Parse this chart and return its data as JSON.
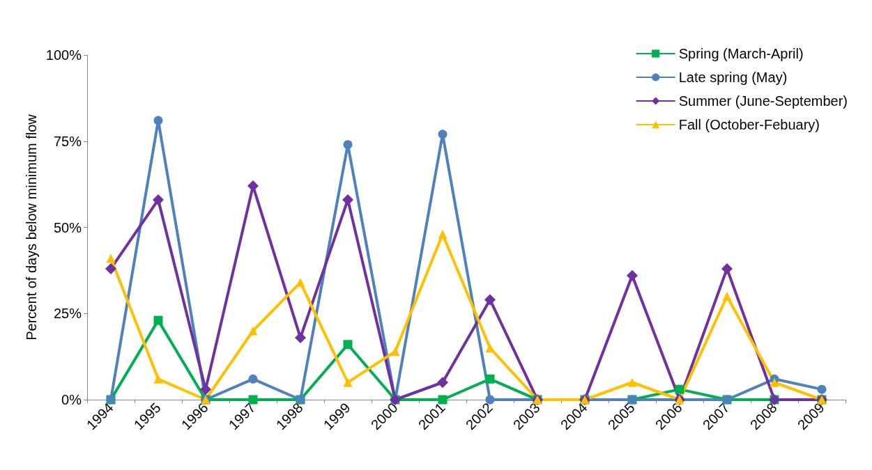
{
  "chart_data": {
    "type": "line",
    "ylabel": "Percent of days below minimum flow",
    "categories": [
      "1994",
      "1995",
      "1996",
      "1997",
      "1998",
      "1999",
      "2000",
      "2001",
      "2002",
      "2003",
      "2004",
      "2005",
      "2006",
      "2007",
      "2008",
      "2009"
    ],
    "ylim": [
      0,
      100
    ],
    "yticks": [
      {
        "value": 0,
        "label": "0%"
      },
      {
        "value": 25,
        "label": "25%"
      },
      {
        "value": 50,
        "label": "50%"
      },
      {
        "value": 75,
        "label": "75%"
      },
      {
        "value": 100,
        "label": "100%"
      }
    ],
    "grid": false,
    "legend": "top right",
    "series": [
      {
        "name": "Spring (March-April)",
        "color": "#00b050",
        "marker": "square",
        "values": [
          0,
          23,
          0,
          0,
          0,
          16,
          0,
          0,
          6,
          0,
          0,
          0,
          3,
          0,
          0,
          0
        ]
      },
      {
        "name": "Late spring (May)",
        "color": "#4f81bd",
        "marker": "circle",
        "values": [
          0,
          81,
          0,
          6,
          0,
          74,
          0,
          77,
          0,
          0,
          0,
          0,
          0,
          0,
          6,
          3
        ]
      },
      {
        "name": "Summer (June-September)",
        "color": "#7030a0",
        "marker": "diamond",
        "values": [
          38,
          58,
          3,
          62,
          18,
          58,
          0,
          5,
          29,
          0,
          0,
          36,
          0,
          38,
          0,
          0
        ]
      },
      {
        "name": "Fall (October-Febuary)",
        "color": "#ffc000",
        "marker": "triangle",
        "values": [
          41,
          6,
          0,
          20,
          34,
          5,
          14,
          48,
          15,
          0,
          0,
          5,
          0,
          30,
          5,
          0
        ]
      }
    ]
  }
}
